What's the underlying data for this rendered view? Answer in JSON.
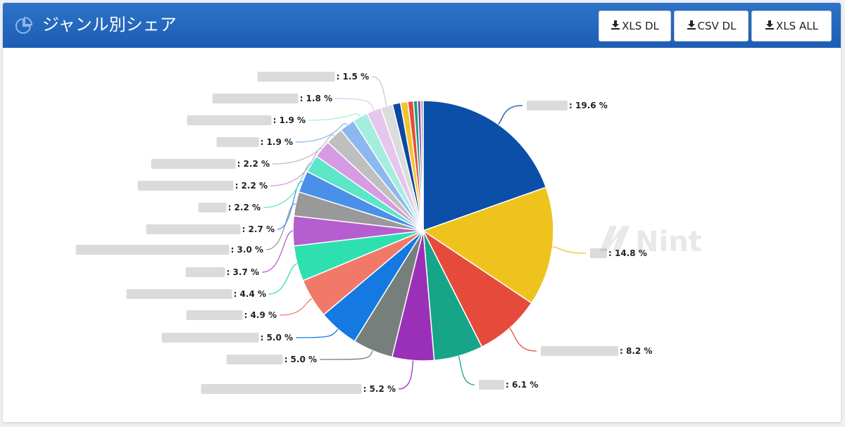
{
  "header": {
    "title": "ジャンル別シェア",
    "icon": "pie-chart-icon",
    "background": "#2566bd"
  },
  "toolbar": {
    "xls_label": "XLS DL",
    "csv_label": "CSV DL",
    "xls_all_label": "XLS ALL",
    "download_icon": "download-icon"
  },
  "watermark": {
    "text": "Nint"
  },
  "chart_data": {
    "type": "pie",
    "title": "ジャンル別シェア",
    "value_suffix": " %",
    "slices": [
      {
        "value": 19.6,
        "color": "#0b4fa8"
      },
      {
        "value": 14.8,
        "color": "#eec31d"
      },
      {
        "value": 8.2,
        "color": "#e64a3b"
      },
      {
        "value": 6.1,
        "color": "#17a589"
      },
      {
        "value": 5.2,
        "color": "#9b30b8"
      },
      {
        "value": 5.0,
        "color": "#777f7d"
      },
      {
        "value": 5.0,
        "color": "#1479e0"
      },
      {
        "value": 4.9,
        "color": "#f1796a"
      },
      {
        "value": 4.4,
        "color": "#2ee0b0"
      },
      {
        "value": 3.7,
        "color": "#b55ed0"
      },
      {
        "value": 3.0,
        "color": "#999999"
      },
      {
        "value": 2.7,
        "color": "#4a90e8"
      },
      {
        "value": 2.2,
        "color": "#5de6c8"
      },
      {
        "value": 2.2,
        "color": "#d69be3"
      },
      {
        "value": 2.2,
        "color": "#bfbfbf"
      },
      {
        "value": 1.9,
        "color": "#8cb8f0"
      },
      {
        "value": 1.9,
        "color": "#a5eedd"
      },
      {
        "value": 1.8,
        "color": "#e5c6ee"
      },
      {
        "value": 1.5,
        "color": "#dcdcdc"
      },
      {
        "value": 1.0,
        "color": "#0d47a1"
      },
      {
        "value": 0.9,
        "color": "#f4c430"
      },
      {
        "value": 0.7,
        "color": "#e74c3c"
      },
      {
        "value": 0.5,
        "color": "#16a085"
      },
      {
        "value": 0.4,
        "color": "#8e44ad"
      },
      {
        "value": 0.3,
        "color": "#95a5a6"
      }
    ],
    "labels": [
      {
        "slice": 0,
        "text": "19.6 %",
        "mask_w": 58
      },
      {
        "slice": 1,
        "text": "14.8 %",
        "mask_w": 24
      },
      {
        "slice": 2,
        "text": "8.2 %",
        "mask_w": 110
      },
      {
        "slice": 3,
        "text": "6.1 %",
        "mask_w": 36
      },
      {
        "slice": 4,
        "text": "5.2 %",
        "mask_w": 228
      },
      {
        "slice": 5,
        "text": "5.0 %",
        "mask_w": 80
      },
      {
        "slice": 6,
        "text": "5.0 %",
        "mask_w": 138
      },
      {
        "slice": 7,
        "text": "4.9 %",
        "mask_w": 80
      },
      {
        "slice": 8,
        "text": "4.4 %",
        "mask_w": 150
      },
      {
        "slice": 9,
        "text": "3.7 %",
        "mask_w": 56
      },
      {
        "slice": 10,
        "text": "3.0 %",
        "mask_w": 218
      },
      {
        "slice": 11,
        "text": "2.7 %",
        "mask_w": 134
      },
      {
        "slice": 12,
        "text": "2.2 %",
        "mask_w": 40
      },
      {
        "slice": 13,
        "text": "2.2 %",
        "mask_w": 136
      },
      {
        "slice": 14,
        "text": "2.2 %",
        "mask_w": 120
      },
      {
        "slice": 15,
        "text": "1.9 %",
        "mask_w": 60
      },
      {
        "slice": 16,
        "text": "1.9 %",
        "mask_w": 120
      },
      {
        "slice": 17,
        "text": "1.8 %",
        "mask_w": 122
      },
      {
        "slice": 18,
        "text": "1.5 %",
        "mask_w": 110
      }
    ]
  }
}
